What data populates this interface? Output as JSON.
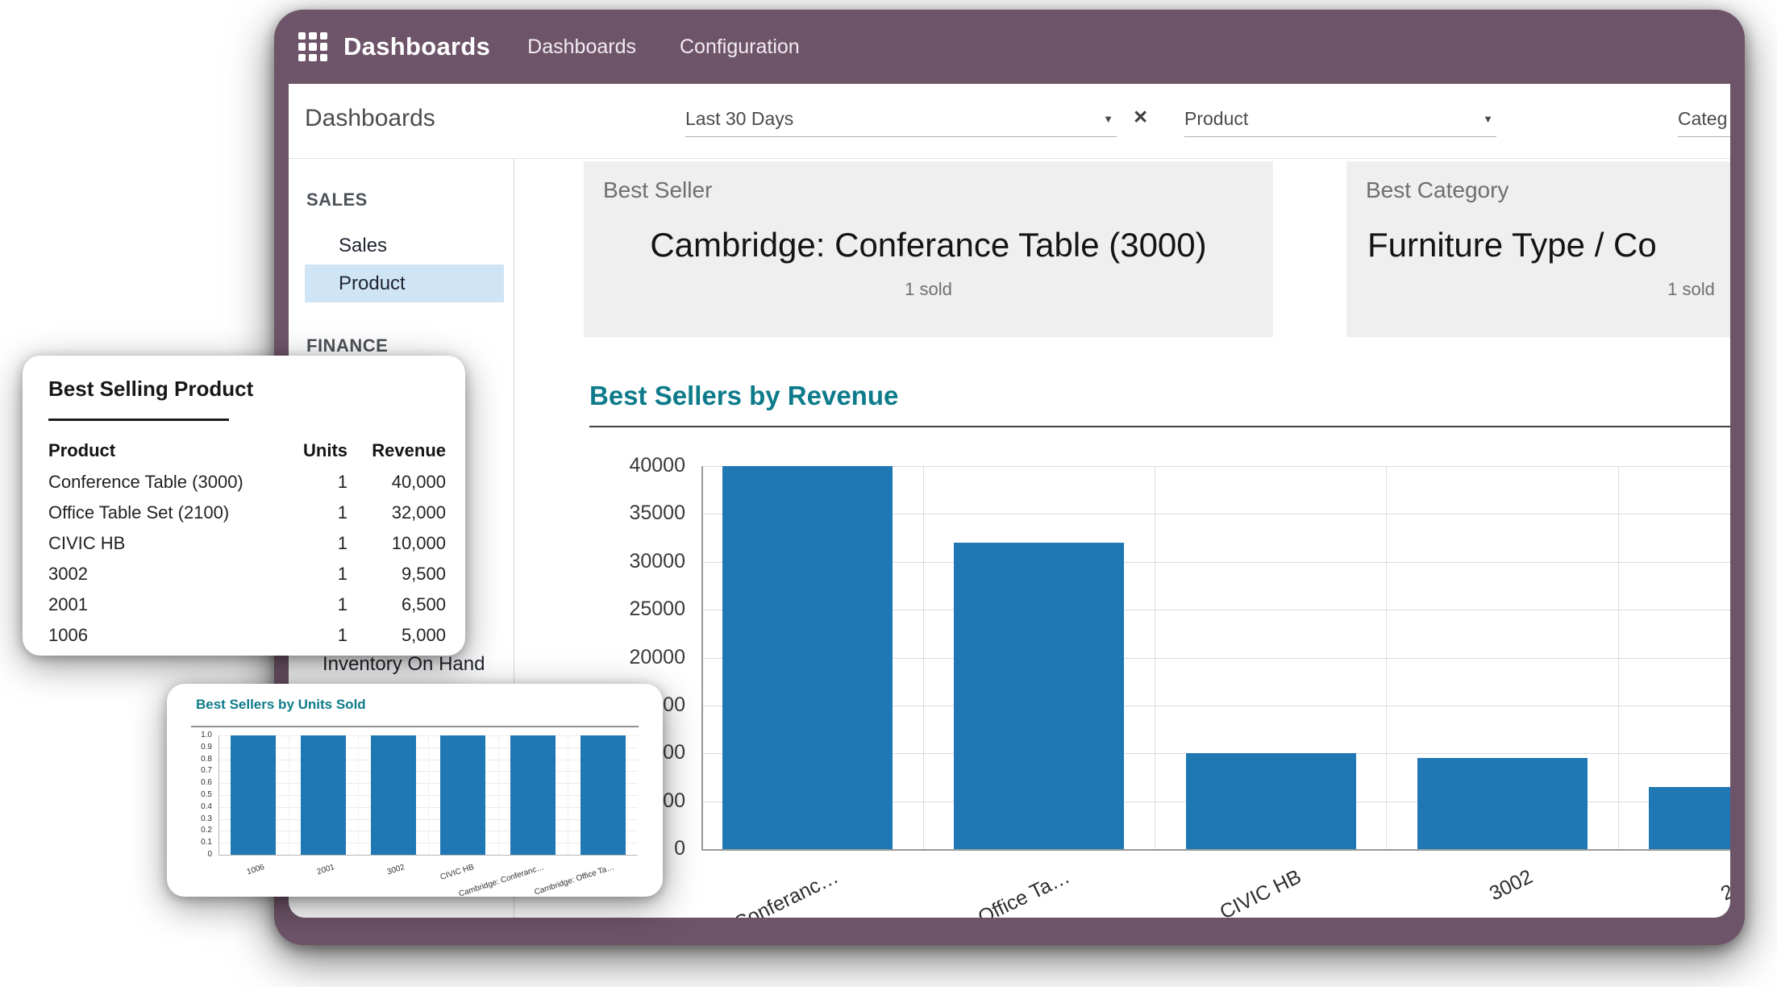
{
  "app": {
    "nav": {
      "app_name": "Dashboards",
      "menu_items": [
        "Dashboards",
        "Configuration"
      ]
    },
    "control_panel": {
      "title": "Dashboards",
      "filters": {
        "date": {
          "value": "Last 30 Days"
        },
        "product": {
          "value": "Product"
        },
        "category": {
          "value": "Categ"
        }
      }
    },
    "sidebar": {
      "sections": [
        {
          "label": "SALES",
          "items": [
            {
              "label": "Sales",
              "active": false
            },
            {
              "label": "Product",
              "active": true
            }
          ]
        },
        {
          "label": "FINANCE",
          "items": []
        }
      ],
      "lower_item": "Inventory On Hand"
    },
    "stat_cards": [
      {
        "label": "Best Seller",
        "value": "Cambridge: Conferance Table (3000)",
        "sub": "1 sold"
      },
      {
        "label": "Best Category",
        "value": "Furniture Type / Co",
        "sub": "1 sold"
      }
    ]
  },
  "popups": {
    "best_selling_product": {
      "title": "Best Selling Product",
      "columns": [
        "Product",
        "Units",
        "Revenue"
      ],
      "rows": [
        [
          "Conference Table (3000)",
          "1",
          "40,000"
        ],
        [
          "Office Table Set (2100)",
          "1",
          "32,000"
        ],
        [
          "CIVIC HB",
          "1",
          "10,000"
        ],
        [
          "3002",
          "1",
          "9,500"
        ],
        [
          "2001",
          "1",
          "6,500"
        ],
        [
          "1006",
          "1",
          "5,000"
        ]
      ]
    }
  },
  "chart_data": [
    {
      "id": "revenue",
      "type": "bar",
      "title": "Best Sellers by Revenue",
      "categories": [
        "Cambridge: Conferance Table (3000)",
        "Cambridge: Office Table Set (2100)",
        "CIVIC HB",
        "3002",
        "2001"
      ],
      "tick_labels": [
        "Cambridge: Conferanc…",
        "Cambridge: Office Ta…",
        "CIVIC HB",
        "3002",
        "2001"
      ],
      "values": [
        40000,
        32000,
        10000,
        9500,
        6500
      ],
      "xlabel": "",
      "ylabel": "",
      "ylim": [
        0,
        40000
      ],
      "ytick_step": 5000,
      "grid": true,
      "legend": "none",
      "bar_color": "#1f77b4"
    },
    {
      "id": "units",
      "type": "bar",
      "title": "Best Sellers by Units Sold",
      "categories": [
        "1006",
        "2001",
        "3002",
        "CIVIC HB",
        "Cambridge: Conferanc…",
        "Cambridge: Office Ta…"
      ],
      "values": [
        1,
        1,
        1,
        1,
        1,
        1
      ],
      "xlabel": "",
      "ylabel": "",
      "ylim": [
        0,
        1.0
      ],
      "ytick_step": 0.1,
      "grid": true,
      "legend": "none",
      "bar_color": "#1f77b4"
    }
  ],
  "colors": {
    "chrome_purple": "#6e5468",
    "accent_teal": "#0d7b8a",
    "bar_blue": "#1f77b4",
    "active_item_bg": "#cfe4f5",
    "stat_card_bg": "#efefef"
  }
}
